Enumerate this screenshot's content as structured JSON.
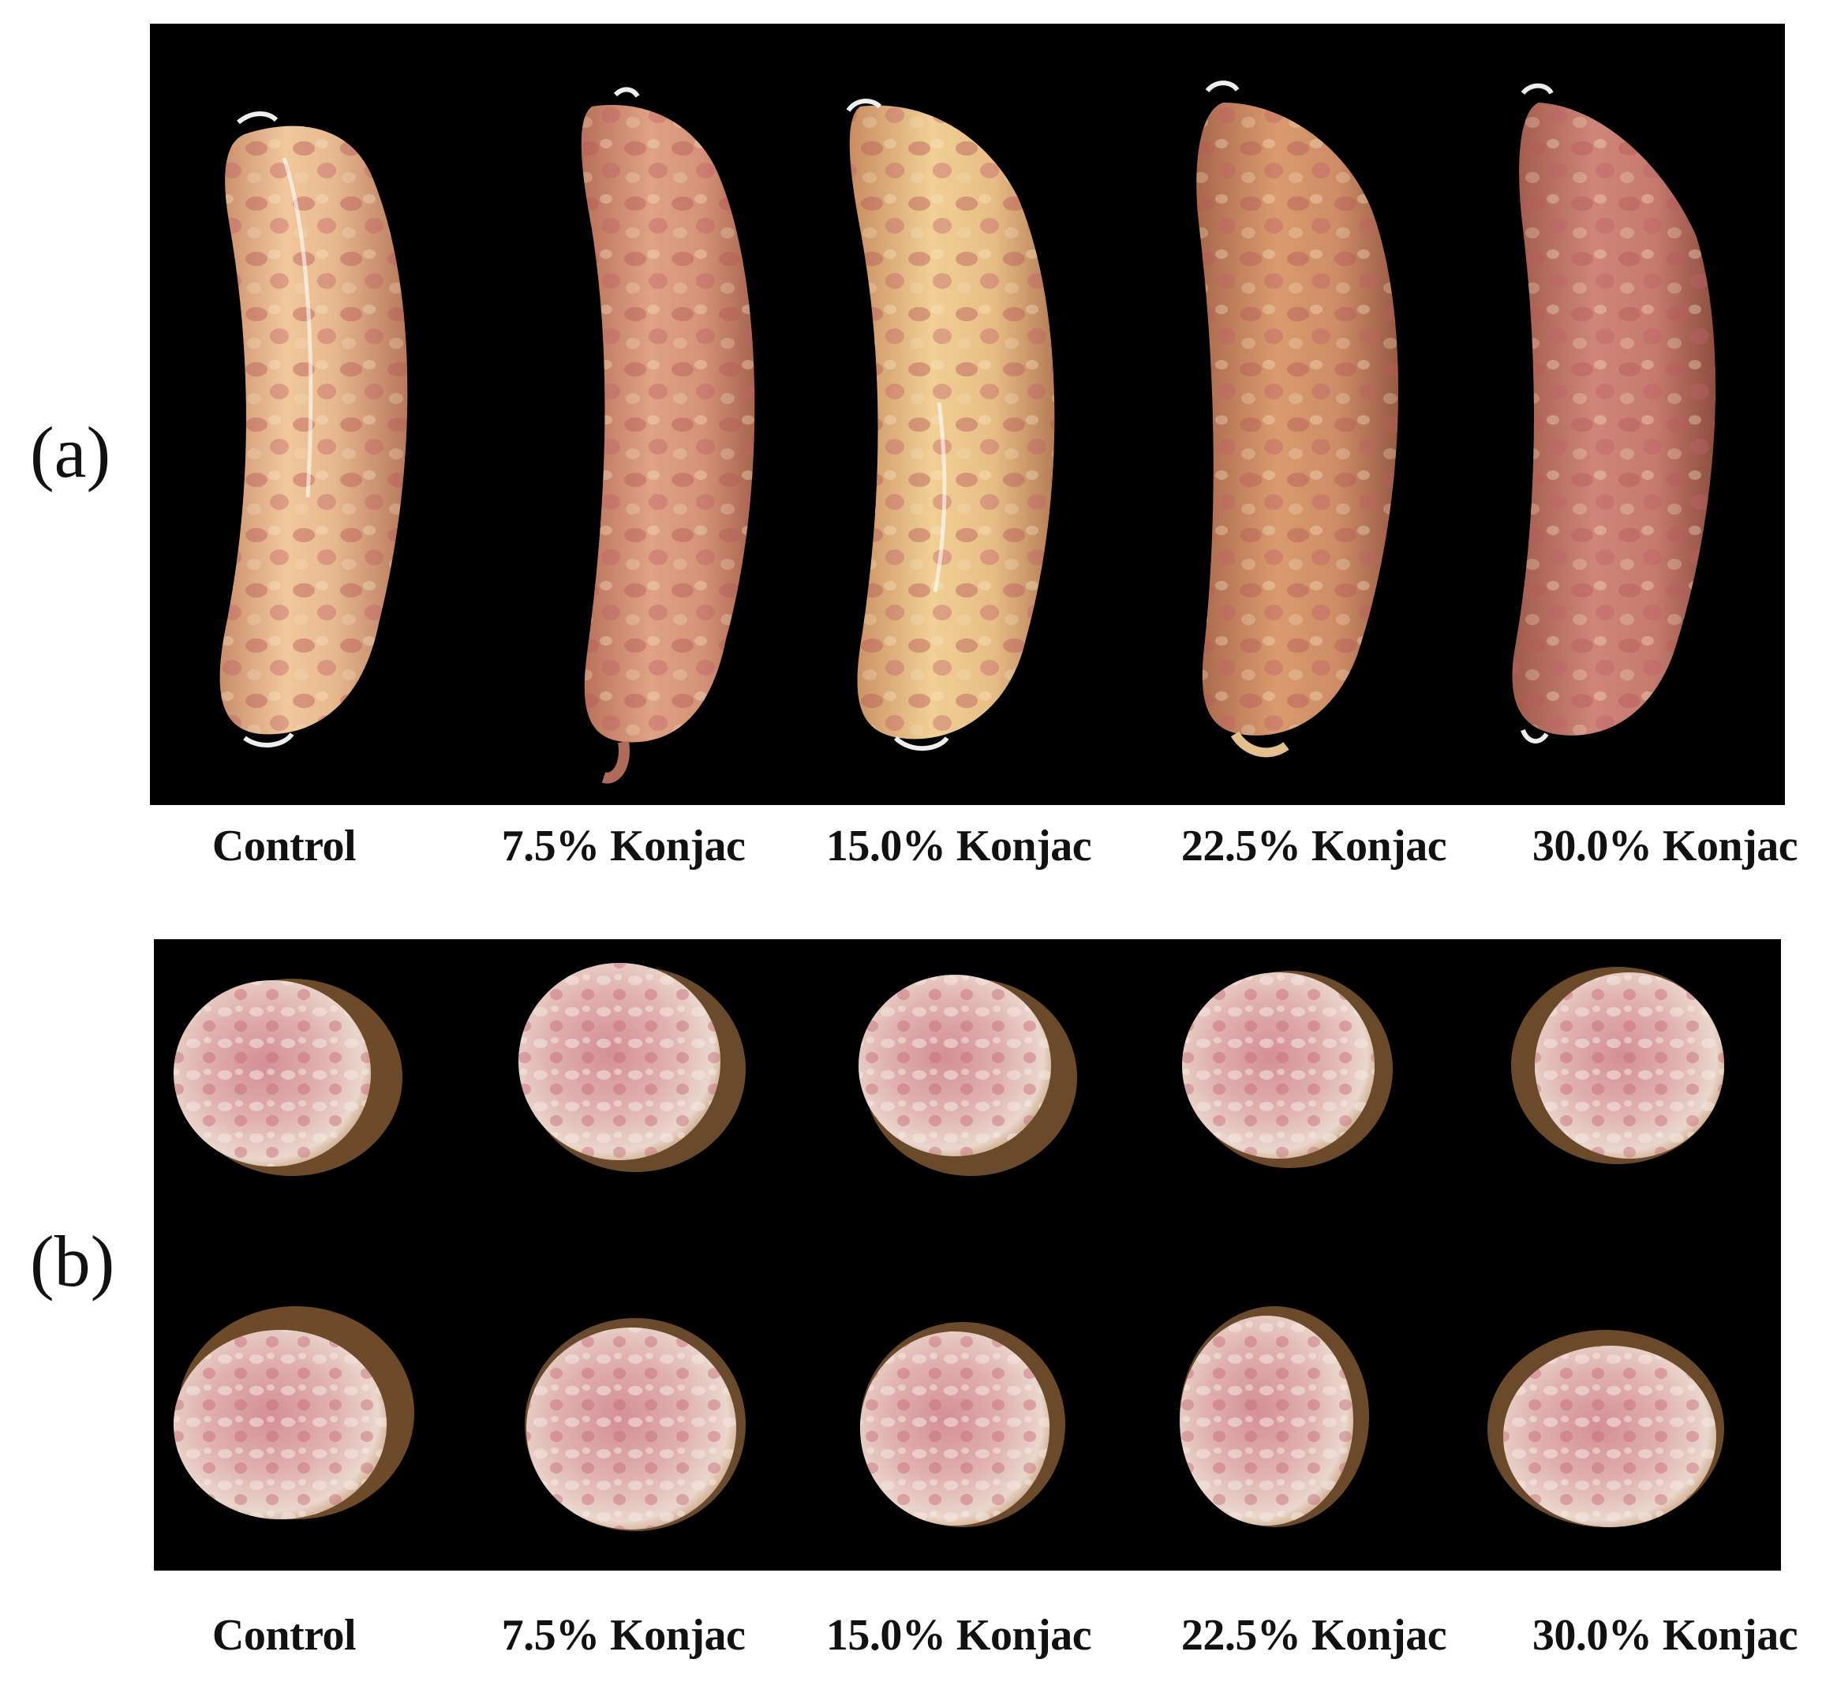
{
  "panels": [
    {
      "letter": "(a)",
      "captions": [
        "Control",
        "7.5% Konjac",
        "15.0% Konjac",
        "22.5% Konjac",
        "30.0% Konjac"
      ]
    },
    {
      "letter": "(b)",
      "captions": [
        "Control",
        "7.5% Konjac",
        "15.0% Konjac",
        "22.5% Konjac",
        "30.0% Konjac"
      ]
    }
  ],
  "colors": {
    "background": "#000000",
    "casing_light": "#e9c08e",
    "casing_mid": "#d99a7a",
    "meat_pink": "#c8707a",
    "fat_white": "#ead9d2",
    "string": "#ffffff"
  }
}
